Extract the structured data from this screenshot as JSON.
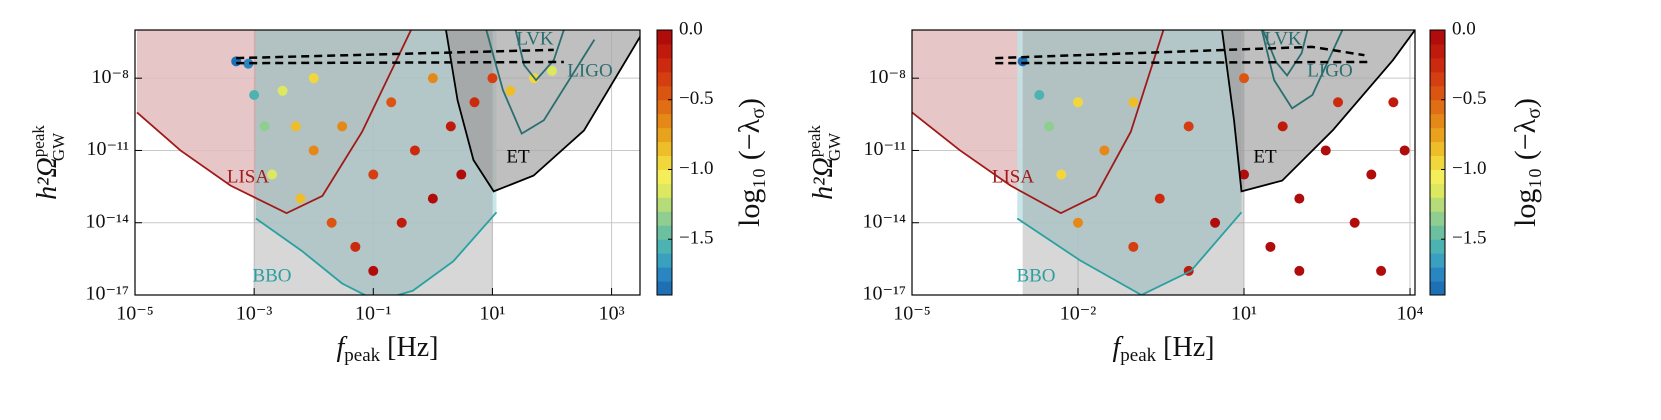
{
  "chart_data": [
    {
      "type": "scatter",
      "log_x": true,
      "log_y": true,
      "grid": true,
      "xlabel": {
        "text": "f",
        "sub": "peak",
        "unit": " [Hz]"
      },
      "ylabel": {
        "text": "h²Ω",
        "sup": "peak",
        "sub": "GW"
      },
      "xlim": [
        1e-05,
        3000
      ],
      "ylim": [
        1e-17,
        1e-06
      ],
      "xticks": [
        {
          "value": 1e-05,
          "label": "10⁻⁵"
        },
        {
          "value": 0.001,
          "label": "10⁻³"
        },
        {
          "value": 0.1,
          "label": "10⁻¹"
        },
        {
          "value": 10,
          "label": "10¹"
        },
        {
          "value": 1000,
          "label": "10³"
        }
      ],
      "yticks": [
        {
          "value": 1e-17,
          "label": "10⁻¹⁷"
        },
        {
          "value": 1e-14,
          "label": "10⁻¹⁴"
        },
        {
          "value": 1e-11,
          "label": "10⁻¹¹"
        },
        {
          "value": 1e-08,
          "label": "10⁻⁸"
        }
      ],
      "band": {
        "range": [
          0.001,
          10
        ],
        "color": "#8c8c8c"
      },
      "regions": [
        {
          "name": "LISA",
          "color": "#a01a1a",
          "fill": "#e3bcbe",
          "x": [
            1.08e-05,
            5.8e-05,
            0.0004,
            0.0035,
            0.014,
            0.065,
            0.43
          ],
          "y": [
            3.8e-10,
            1e-11,
            3.5e-13,
            2.5e-14,
            1.3e-13,
            6e-11,
            1e-06
          ]
        },
        {
          "name": "BBO",
          "color": "#2aa0a0",
          "fill": "#bfe3e4",
          "x": [
            0.00107,
            0.0063,
            0.03,
            0.115,
            0.46,
            2.2,
            11.7
          ],
          "y": [
            1.5e-14,
            6.8e-16,
            3e-17,
            5.6e-18,
            1.5e-17,
            2.5e-16,
            2.7e-14
          ]
        },
        {
          "name": "ET",
          "color": "#000000",
          "fill": "#a9a9a9",
          "x": [
            1.66,
            2.6,
            4.8,
            10.5,
            49,
            345,
            3600
          ],
          "y": [
            1e-06,
            1.2e-09,
            4e-12,
            2e-13,
            9e-13,
            6.8e-11,
            1.1e-06
          ]
        },
        {
          "name": "LIGO",
          "color": "#2b6e70",
          "x": [
            7.9,
            15,
            31,
            73,
            515
          ],
          "y": [
            1e-06,
            3.2e-09,
            5e-11,
            1.8e-10,
            4e-07
          ]
        },
        {
          "name": "LVK",
          "color": "#2b6e70",
          "x": [
            24.5,
            34,
            54,
            107,
            158
          ],
          "y": [
            1e-06,
            3.5e-08,
            8.3e-09,
            5.6e-08,
            1e-06
          ]
        }
      ],
      "dashed": [
        {
          "color": "#000000",
          "x": [
            0.0005,
            107
          ],
          "y": [
            6.8e-08,
            1.5e-07
          ]
        },
        {
          "color": "#000000",
          "x": [
            0.0005,
            158
          ],
          "y": [
            4.2e-08,
            4.7e-08
          ]
        }
      ],
      "x": [
        0.0005,
        0.0008,
        0.001,
        0.0015,
        0.002,
        0.003,
        0.005,
        0.006,
        0.01,
        0.01,
        0.02,
        0.03,
        0.05,
        0.1,
        0.1,
        0.2,
        0.3,
        0.5,
        1,
        1,
        2,
        3,
        5,
        10,
        20,
        50,
        100
      ],
      "y": [
        5e-08,
        4e-08,
        2e-09,
        1e-10,
        1e-12,
        3e-09,
        1e-10,
        1e-13,
        1e-11,
        1e-08,
        1e-14,
        1e-10,
        1e-15,
        1e-12,
        1e-16,
        1e-09,
        1e-14,
        1e-11,
        1e-13,
        1e-08,
        1e-10,
        1e-12,
        1e-09,
        1e-08,
        3e-09,
        1e-08,
        2e-08
      ],
      "c": [
        -1.85,
        -1.75,
        -1.5,
        -1.3,
        -1.1,
        -1.2,
        -0.9,
        -0.8,
        -0.7,
        -1.0,
        -0.5,
        -0.6,
        -0.3,
        -0.35,
        -0.1,
        -0.5,
        -0.15,
        -0.3,
        -0.05,
        -0.6,
        -0.2,
        0,
        -0.3,
        -0.4,
        -0.8,
        -1.0,
        -1.1
      ],
      "colorbar": {
        "label": {
          "text": "log₁₀ (−λ",
          "sub": "σ",
          "end": ")"
        },
        "lim": [
          -1.9,
          0
        ],
        "ticks": [
          {
            "value": 0,
            "label": "0.0"
          },
          {
            "value": -0.5,
            "label": "−0.5"
          },
          {
            "value": -1,
            "label": "−1.0"
          },
          {
            "value": -1.5,
            "label": "−1.5"
          }
        ],
        "colormap": [
          "#1f6fb4",
          "#2a86c0",
          "#3aa0c0",
          "#4cb3b0",
          "#6cc0a0",
          "#8fcd90",
          "#b5dc78",
          "#dbe860",
          "#f4ee5a",
          "#f2d73c",
          "#eebd2a",
          "#e9a21e",
          "#e48818",
          "#e06e14",
          "#db5512",
          "#d53e10",
          "#cc2a0e",
          "#c01a0c",
          "#b00c0c"
        ]
      }
    },
    {
      "type": "scatter",
      "log_x": true,
      "log_y": true,
      "grid": true,
      "xlabel": {
        "text": "f",
        "sub": "peak",
        "unit": " [Hz]"
      },
      "ylabel": {
        "text": "h²Ω",
        "sup": "peak",
        "sub": "GW"
      },
      "xlim": [
        1e-05,
        12300
      ],
      "ylim": [
        1e-17,
        1e-06
      ],
      "xticks": [
        {
          "value": 1e-05,
          "label": "10⁻⁵"
        },
        {
          "value": 0.01,
          "label": "10⁻²"
        },
        {
          "value": 10,
          "label": "10¹"
        },
        {
          "value": 10000,
          "label": "10⁴"
        }
      ],
      "yticks": [
        {
          "value": 1e-17,
          "label": "10⁻¹⁷"
        },
        {
          "value": 1e-14,
          "label": "10⁻¹⁴"
        },
        {
          "value": 1e-11,
          "label": "10⁻¹¹"
        },
        {
          "value": 1e-08,
          "label": "10⁻⁸"
        }
      ],
      "band": {
        "range": [
          0.001,
          10
        ],
        "color": "#8c8c8c"
      },
      "regions": [
        {
          "name": "LISA",
          "color": "#a01a1a",
          "fill": "#e3bcbe",
          "x": [
            1e-05,
            7.4e-05,
            0.0006,
            0.0049,
            0.021,
            0.09,
            0.35
          ],
          "y": [
            3.8e-10,
            1e-11,
            3.5e-13,
            2.5e-14,
            1.3e-13,
            6e-11,
            1e-06
          ]
        },
        {
          "name": "BBO",
          "color": "#2aa0a0",
          "fill": "#bfe3e4",
          "x": [
            0.0008,
            0.011,
            0.14,
            1.1,
            9
          ],
          "y": [
            1.5e-14,
            2.7e-16,
            1e-17,
            1e-16,
            2.7e-14
          ]
        },
        {
          "name": "ET",
          "color": "#000000",
          "fill": "#a9a9a9",
          "x": [
            4,
            6.6,
            9,
            49,
            400,
            4900,
            12300
          ],
          "y": [
            1e-06,
            1.8e-10,
            2e-13,
            5.6e-13,
            6.8e-11,
            5.6e-08,
            1e-06
          ]
        },
        {
          "name": "LIGO",
          "color": "#2b6e70",
          "x": [
            21,
            35,
            74,
            172,
            600
          ],
          "y": [
            1e-06,
            8.3e-09,
            5.6e-10,
            2e-09,
            1e-06
          ]
        },
        {
          "name": "LVK",
          "color": "#2b6e70",
          "x": [
            22,
            38,
            60,
            110,
            140
          ],
          "y": [
            1e-06,
            4.6e-08,
            1.3e-08,
            1.1e-07,
            1e-06
          ]
        }
      ],
      "dashed": [
        {
          "color": "#000000",
          "x": [
            0.00032,
            170,
            1500
          ],
          "y": [
            6.8e-08,
            2e-07,
            9e-08
          ]
        },
        {
          "color": "#000000",
          "x": [
            0.00032,
            1700
          ],
          "y": [
            4.2e-08,
            4.7e-08
          ]
        }
      ],
      "x": [
        0.001,
        0.002,
        0.003,
        0.005,
        0.01,
        0.01,
        0.03,
        0.1,
        0.1,
        0.3,
        1,
        1,
        3,
        10,
        10,
        30,
        50,
        100,
        100,
        300,
        500,
        1000,
        2000,
        3000,
        5000,
        8000
      ],
      "y": [
        5e-08,
        2e-09,
        1e-10,
        1e-12,
        1e-09,
        1e-14,
        1e-11,
        1e-15,
        1e-09,
        1e-13,
        1e-16,
        1e-10,
        1e-14,
        1e-12,
        1e-08,
        1e-15,
        1e-10,
        1e-13,
        1e-16,
        1e-11,
        1e-09,
        1e-14,
        1e-12,
        1e-16,
        1e-09,
        1e-11
      ],
      "c": [
        -1.85,
        -1.5,
        -1.3,
        -1.0,
        -1.0,
        -0.7,
        -0.6,
        -0.4,
        -0.8,
        -0.3,
        -0.15,
        -0.4,
        -0.1,
        -0.1,
        -0.5,
        0,
        -0.2,
        -0.05,
        -0.1,
        -0.1,
        -0.3,
        -0.05,
        0,
        -0.1,
        -0.2,
        0
      ],
      "colorbar": {
        "label": {
          "text": "log₁₀ (−λ",
          "sub": "σ",
          "end": ")"
        },
        "lim": [
          -1.9,
          0
        ],
        "ticks": [
          {
            "value": 0,
            "label": "0.0"
          },
          {
            "value": -0.5,
            "label": "−0.5"
          },
          {
            "value": -1,
            "label": "−1.0"
          },
          {
            "value": -1.5,
            "label": "−1.5"
          }
        ],
        "colormap": [
          "#1f6fb4",
          "#2a86c0",
          "#3aa0c0",
          "#4cb3b0",
          "#6cc0a0",
          "#8fcd90",
          "#b5dc78",
          "#dbe860",
          "#f4ee5a",
          "#f2d73c",
          "#eebd2a",
          "#e9a21e",
          "#e48818",
          "#e06e14",
          "#db5512",
          "#d53e10",
          "#cc2a0e",
          "#c01a0c",
          "#b00c0c"
        ]
      }
    }
  ]
}
